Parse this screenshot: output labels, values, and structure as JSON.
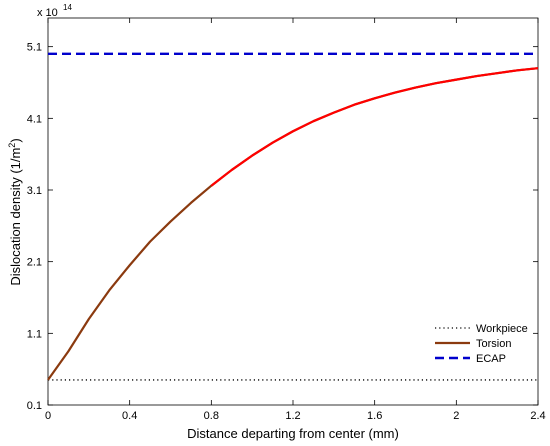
{
  "chart_data": {
    "type": "line",
    "xlabel": "Distance departing from center (mm)",
    "ylabel_main": "Dislocation density (1/m",
    "ylabel_sup": "2",
    "ylabel_end": ")",
    "y_exponent_base": "x 10",
    "y_exponent_power": "14",
    "xlim": [
      0,
      2.4
    ],
    "ylim": [
      0.1,
      5.5
    ],
    "xticks": [
      0,
      0.4,
      0.8,
      1.2,
      1.6,
      2,
      2.4
    ],
    "xtick_labels": [
      "0",
      "0.4",
      "0.8",
      "1.2",
      "1.6",
      "2",
      "2.4"
    ],
    "yticks": [
      0.1,
      1.1,
      2.1,
      3.1,
      4.1,
      5.1
    ],
    "ytick_labels": [
      "0.1",
      "1.1",
      "2.1",
      "3.1",
      "4.1",
      "5.1"
    ],
    "legend_position": "bottom-right",
    "series": [
      {
        "name": "Workpiece",
        "style": "dotted",
        "color": "#000000",
        "x": [
          0,
          2.4
        ],
        "y": [
          0.45,
          0.45
        ]
      },
      {
        "name": "Torsion",
        "style": "solid",
        "color": "#8b3a0f",
        "highlight_color": "#ff0000",
        "x": [
          0,
          0.1,
          0.2,
          0.3,
          0.4,
          0.5,
          0.6,
          0.7,
          0.8,
          0.9,
          1.0,
          1.1,
          1.2,
          1.3,
          1.4,
          1.5,
          1.6,
          1.7,
          1.8,
          1.9,
          2.0,
          2.1,
          2.2,
          2.3,
          2.4
        ],
        "y": [
          0.45,
          0.85,
          1.3,
          1.7,
          2.05,
          2.38,
          2.66,
          2.92,
          3.16,
          3.38,
          3.58,
          3.76,
          3.92,
          4.06,
          4.18,
          4.29,
          4.38,
          4.46,
          4.53,
          4.59,
          4.64,
          4.69,
          4.73,
          4.77,
          4.8
        ]
      },
      {
        "name": "ECAP",
        "style": "dashed",
        "color": "#0000cc",
        "x": [
          0,
          2.4
        ],
        "y": [
          5.0,
          5.0
        ]
      }
    ]
  }
}
